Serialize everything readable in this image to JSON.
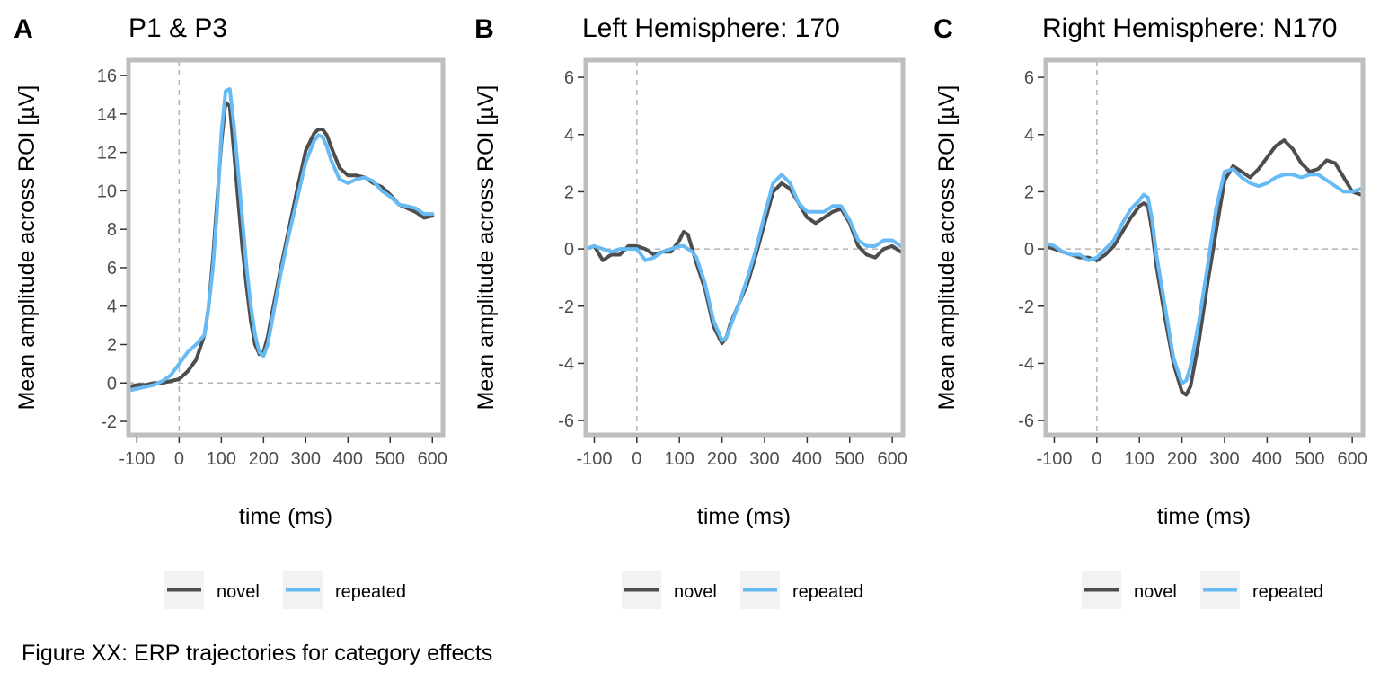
{
  "caption": "Figure XX: ERP trajectories for category effects",
  "colors": {
    "novel": "#4d4d4d",
    "repeated": "#66bbf5",
    "frame": "#bebebe",
    "ref_line": "#b3b3b3",
    "legend_key_bg": "#f2f2f2"
  },
  "chart_data": [
    {
      "type": "line",
      "panel": "A",
      "title": "P1 & P3",
      "xlabel": "time (ms)",
      "ylabel": "Mean amplitude across ROI [µV]",
      "xlim": [
        -120,
        625
      ],
      "ylim": [
        -2.7,
        16.8
      ],
      "xticks": [
        -100,
        0,
        100,
        200,
        300,
        400,
        500,
        600
      ],
      "yticks": [
        -2,
        0,
        2,
        4,
        6,
        8,
        10,
        12,
        14,
        16
      ],
      "grid": false,
      "legend_position": "bottom",
      "series": [
        {
          "name": "novel",
          "x": [
            -120,
            -100,
            -80,
            -60,
            -40,
            -20,
            0,
            20,
            40,
            60,
            70,
            80,
            90,
            100,
            110,
            120,
            130,
            140,
            150,
            160,
            170,
            180,
            190,
            200,
            210,
            220,
            240,
            260,
            280,
            300,
            320,
            330,
            340,
            350,
            360,
            380,
            400,
            420,
            440,
            460,
            480,
            500,
            520,
            540,
            560,
            580,
            600
          ],
          "y": [
            -0.2,
            -0.1,
            -0.1,
            0.0,
            0.0,
            0.1,
            0.2,
            0.6,
            1.2,
            2.5,
            4.0,
            6.5,
            9.5,
            12.5,
            14.6,
            14.4,
            12.0,
            9.5,
            7.0,
            5.0,
            3.2,
            2.0,
            1.5,
            1.6,
            2.4,
            3.6,
            5.9,
            8.0,
            10.1,
            12.1,
            13.0,
            13.2,
            13.2,
            12.9,
            12.3,
            11.2,
            10.8,
            10.8,
            10.7,
            10.4,
            10.2,
            9.8,
            9.3,
            9.1,
            8.9,
            8.6,
            8.7
          ]
        },
        {
          "name": "repeated",
          "x": [
            -120,
            -100,
            -80,
            -60,
            -40,
            -20,
            0,
            20,
            40,
            60,
            70,
            80,
            90,
            100,
            110,
            120,
            130,
            140,
            150,
            160,
            170,
            180,
            190,
            200,
            210,
            220,
            240,
            260,
            280,
            300,
            320,
            330,
            340,
            350,
            360,
            380,
            400,
            420,
            440,
            460,
            480,
            500,
            520,
            540,
            560,
            580,
            600
          ],
          "y": [
            -0.4,
            -0.3,
            -0.2,
            -0.1,
            0.1,
            0.4,
            1.0,
            1.6,
            2.0,
            2.5,
            4.0,
            6.0,
            9.0,
            13.0,
            15.2,
            15.3,
            13.4,
            11.0,
            8.5,
            6.0,
            4.0,
            2.5,
            1.6,
            1.4,
            2.0,
            3.2,
            5.6,
            7.7,
            9.6,
            11.5,
            12.6,
            12.9,
            12.8,
            12.3,
            11.6,
            10.6,
            10.4,
            10.6,
            10.7,
            10.5,
            10.0,
            9.7,
            9.3,
            9.2,
            9.1,
            8.8,
            8.8
          ]
        }
      ]
    },
    {
      "type": "line",
      "panel": "B",
      "title": "Left Hemisphere: 170",
      "xlabel": "time (ms)",
      "ylabel": "Mean amplitude across ROI [µV]",
      "xlim": [
        -120,
        625
      ],
      "ylim": [
        -6.5,
        6.6
      ],
      "xticks": [
        -100,
        0,
        100,
        200,
        300,
        400,
        500,
        600
      ],
      "yticks": [
        -6,
        -4,
        -2,
        0,
        2,
        4,
        6
      ],
      "grid": false,
      "legend_position": "bottom",
      "series": [
        {
          "name": "novel",
          "x": [
            -120,
            -100,
            -80,
            -60,
            -40,
            -20,
            0,
            20,
            40,
            60,
            80,
            100,
            110,
            120,
            130,
            140,
            160,
            180,
            200,
            210,
            220,
            240,
            260,
            280,
            300,
            320,
            340,
            360,
            380,
            400,
            420,
            440,
            460,
            480,
            500,
            520,
            540,
            560,
            580,
            600,
            620
          ],
          "y": [
            0.0,
            0.1,
            -0.4,
            -0.2,
            -0.2,
            0.1,
            0.1,
            0.0,
            -0.2,
            -0.1,
            -0.1,
            0.3,
            0.6,
            0.5,
            0.0,
            -0.5,
            -1.4,
            -2.7,
            -3.3,
            -3.1,
            -2.6,
            -1.9,
            -1.2,
            -0.2,
            0.9,
            2.0,
            2.3,
            2.1,
            1.6,
            1.1,
            0.9,
            1.1,
            1.3,
            1.4,
            0.9,
            0.1,
            -0.2,
            -0.3,
            0.0,
            0.1,
            -0.1
          ]
        },
        {
          "name": "repeated",
          "x": [
            -120,
            -100,
            -80,
            -60,
            -40,
            -20,
            0,
            20,
            40,
            60,
            80,
            100,
            110,
            120,
            130,
            140,
            160,
            180,
            200,
            210,
            220,
            240,
            260,
            280,
            300,
            320,
            340,
            360,
            380,
            400,
            420,
            440,
            460,
            480,
            500,
            520,
            540,
            560,
            580,
            600,
            620
          ],
          "y": [
            0.0,
            0.1,
            0.0,
            -0.1,
            0.0,
            0.0,
            0.0,
            -0.4,
            -0.3,
            -0.1,
            0.0,
            0.1,
            0.1,
            0.0,
            -0.1,
            -0.3,
            -1.2,
            -2.5,
            -3.2,
            -3.1,
            -2.7,
            -1.9,
            -1.0,
            0.0,
            1.2,
            2.3,
            2.6,
            2.3,
            1.6,
            1.3,
            1.3,
            1.3,
            1.5,
            1.5,
            1.0,
            0.3,
            0.1,
            0.1,
            0.3,
            0.3,
            0.1
          ]
        }
      ]
    },
    {
      "type": "line",
      "panel": "C",
      "title": "Right Hemisphere: N170",
      "xlabel": "time (ms)",
      "ylabel": "Mean amplitude across ROI [µV]",
      "xlim": [
        -120,
        625
      ],
      "ylim": [
        -6.5,
        6.6
      ],
      "xticks": [
        -100,
        0,
        100,
        200,
        300,
        400,
        500,
        600
      ],
      "yticks": [
        -6,
        -4,
        -2,
        0,
        2,
        4,
        6
      ],
      "grid": false,
      "legend_position": "bottom",
      "series": [
        {
          "name": "novel",
          "x": [
            -120,
            -100,
            -80,
            -60,
            -40,
            -20,
            0,
            20,
            40,
            60,
            80,
            100,
            110,
            120,
            130,
            140,
            160,
            180,
            200,
            210,
            220,
            240,
            260,
            280,
            300,
            320,
            340,
            360,
            380,
            400,
            420,
            440,
            460,
            480,
            500,
            520,
            540,
            560,
            580,
            600,
            620
          ],
          "y": [
            0.1,
            0.0,
            -0.1,
            -0.2,
            -0.3,
            -0.3,
            -0.4,
            -0.2,
            0.1,
            0.6,
            1.1,
            1.5,
            1.6,
            1.5,
            0.6,
            -0.6,
            -2.4,
            -4.0,
            -5.0,
            -5.1,
            -4.8,
            -3.2,
            -1.2,
            0.6,
            2.4,
            2.9,
            2.7,
            2.5,
            2.8,
            3.2,
            3.6,
            3.8,
            3.5,
            3.0,
            2.7,
            2.8,
            3.1,
            3.0,
            2.5,
            2.0,
            1.9
          ]
        },
        {
          "name": "repeated",
          "x": [
            -120,
            -100,
            -80,
            -60,
            -40,
            -20,
            0,
            20,
            40,
            60,
            80,
            100,
            110,
            120,
            130,
            140,
            160,
            180,
            200,
            210,
            220,
            240,
            260,
            280,
            300,
            320,
            340,
            360,
            380,
            400,
            420,
            440,
            460,
            480,
            500,
            520,
            540,
            560,
            580,
            600,
            620
          ],
          "y": [
            0.2,
            0.1,
            -0.1,
            -0.2,
            -0.2,
            -0.4,
            -0.3,
            0.0,
            0.3,
            0.9,
            1.4,
            1.7,
            1.9,
            1.8,
            1.0,
            -0.2,
            -2.0,
            -3.8,
            -4.7,
            -4.6,
            -4.1,
            -2.5,
            -0.6,
            1.4,
            2.7,
            2.8,
            2.5,
            2.3,
            2.2,
            2.3,
            2.5,
            2.6,
            2.6,
            2.5,
            2.6,
            2.6,
            2.4,
            2.2,
            2.0,
            2.0,
            2.1
          ]
        }
      ]
    }
  ],
  "panels_meta": [
    {
      "letter": "A"
    },
    {
      "letter": "B"
    },
    {
      "letter": "C"
    }
  ]
}
